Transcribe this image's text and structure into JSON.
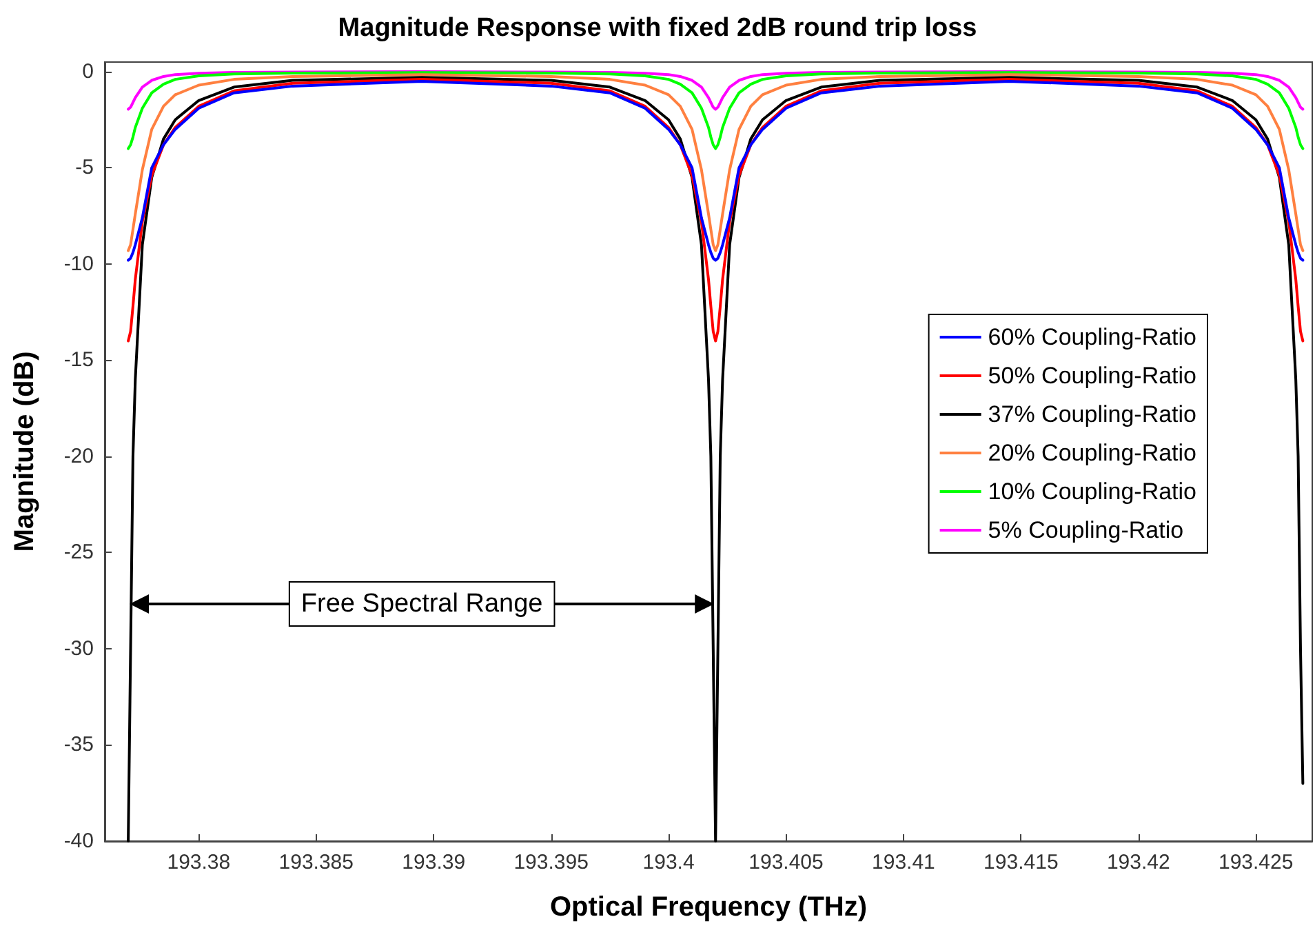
{
  "chart_data": {
    "type": "line",
    "title": "Magnitude Response with fixed 2dB round trip loss",
    "xlabel": "Optical Frequency (THz)",
    "ylabel": "Magnitude (dB)",
    "x": [
      193.377,
      193.3771,
      193.3772,
      193.3773,
      193.3776,
      193.378,
      193.3785,
      193.379,
      193.38,
      193.3815,
      193.384,
      193.3895,
      193.395,
      193.3975,
      193.399,
      193.4,
      193.4005,
      193.401,
      193.4014,
      193.4017,
      193.4018,
      193.4019,
      193.402,
      193.4021,
      193.4022,
      193.4023,
      193.4026,
      193.403,
      193.4035,
      193.404,
      193.405,
      193.4065,
      193.409,
      193.4145,
      193.42,
      193.4225,
      193.424,
      193.425,
      193.4255,
      193.426,
      193.4264,
      193.4267,
      193.4268,
      193.4269,
      193.427
    ],
    "series": [
      {
        "name": "60% Coupling-Ratio",
        "color": "#0000ff",
        "values": [
          -9.8,
          -9.7,
          -9.4,
          -9.0,
          -7.6,
          -5.0,
          -3.8,
          -3.0,
          -1.9,
          -1.1,
          -0.75,
          -0.5,
          -0.75,
          -1.1,
          -1.9,
          -3.0,
          -3.8,
          -5.0,
          -7.6,
          -9.0,
          -9.4,
          -9.7,
          -9.8,
          -9.7,
          -9.4,
          -9.0,
          -7.6,
          -5.0,
          -3.8,
          -3.0,
          -1.9,
          -1.1,
          -0.75,
          -0.5,
          -0.75,
          -1.1,
          -1.9,
          -3.0,
          -3.8,
          -5.0,
          -7.6,
          -9.0,
          -9.4,
          -9.7,
          -9.8
        ]
      },
      {
        "name": "50% Coupling-Ratio",
        "color": "#ff0000",
        "values": [
          -14,
          -13.5,
          -12.2,
          -10.8,
          -7.8,
          -5.4,
          -3.8,
          -2.9,
          -1.8,
          -1.0,
          -0.6,
          -0.4,
          -0.6,
          -1.0,
          -1.8,
          -2.9,
          -3.8,
          -5.4,
          -7.8,
          -10.8,
          -12.2,
          -13.5,
          -14,
          -13.5,
          -12.2,
          -10.8,
          -7.8,
          -5.4,
          -3.8,
          -2.9,
          -1.8,
          -1.0,
          -0.6,
          -0.4,
          -0.6,
          -1.0,
          -1.8,
          -2.9,
          -3.8,
          -5.4,
          -7.8,
          -10.8,
          -12.2,
          -13.5,
          -14
        ]
      },
      {
        "name": "37% Coupling-Ratio",
        "color": "#000000",
        "values": [
          -40,
          -30,
          -20,
          -16,
          -9,
          -5.5,
          -3.5,
          -2.5,
          -1.5,
          -0.8,
          -0.45,
          -0.3,
          -0.45,
          -0.8,
          -1.5,
          -2.5,
          -3.5,
          -5.5,
          -9,
          -16,
          -20,
          -30,
          -40,
          -30,
          -20,
          -16,
          -9,
          -5.5,
          -3.5,
          -2.5,
          -1.5,
          -0.8,
          -0.45,
          -0.3,
          -0.45,
          -0.8,
          -1.5,
          -2.5,
          -3.5,
          -5.5,
          -9,
          -16,
          -20,
          -30,
          -37
        ]
      },
      {
        "name": "20% Coupling-Ratio",
        "color": "#ff8040",
        "values": [
          -9.3,
          -9.0,
          -8.2,
          -7.4,
          -5.1,
          -3.0,
          -1.8,
          -1.2,
          -0.7,
          -0.4,
          -0.25,
          -0.15,
          -0.25,
          -0.4,
          -0.7,
          -1.2,
          -1.8,
          -3.0,
          -5.1,
          -7.4,
          -8.2,
          -9.0,
          -9.3,
          -9.0,
          -8.2,
          -7.4,
          -5.1,
          -3.0,
          -1.8,
          -1.2,
          -0.7,
          -0.4,
          -0.25,
          -0.15,
          -0.25,
          -0.4,
          -0.7,
          -1.2,
          -1.8,
          -3.0,
          -5.1,
          -7.4,
          -8.2,
          -9.0,
          -9.3
        ]
      },
      {
        "name": "10% Coupling-Ratio",
        "color": "#00ff00",
        "values": [
          -4.0,
          -3.8,
          -3.4,
          -2.9,
          -1.9,
          -1.1,
          -0.65,
          -0.4,
          -0.22,
          -0.12,
          -0.07,
          -0.05,
          -0.07,
          -0.12,
          -0.22,
          -0.4,
          -0.65,
          -1.1,
          -1.9,
          -2.9,
          -3.4,
          -3.8,
          -4.0,
          -3.8,
          -3.4,
          -2.9,
          -1.9,
          -1.1,
          -0.65,
          -0.4,
          -0.22,
          -0.12,
          -0.07,
          -0.05,
          -0.07,
          -0.12,
          -0.22,
          -0.4,
          -0.65,
          -1.1,
          -1.9,
          -2.9,
          -3.4,
          -3.8,
          -4.0
        ]
      },
      {
        "name": "5% Coupling-Ratio",
        "color": "#ff00ff",
        "values": [
          -1.95,
          -1.85,
          -1.6,
          -1.35,
          -0.8,
          -0.45,
          -0.25,
          -0.15,
          -0.08,
          -0.04,
          -0.02,
          0,
          -0.02,
          -0.04,
          -0.08,
          -0.15,
          -0.25,
          -0.45,
          -0.8,
          -1.35,
          -1.6,
          -1.85,
          -1.95,
          -1.85,
          -1.6,
          -1.35,
          -0.8,
          -0.45,
          -0.25,
          -0.15,
          -0.08,
          -0.04,
          -0.02,
          0,
          -0.02,
          -0.04,
          -0.08,
          -0.15,
          -0.25,
          -0.45,
          -0.8,
          -1.35,
          -1.6,
          -1.85,
          -1.95
        ]
      }
    ],
    "annotations": [
      "Free Spectral Range"
    ],
    "xlim": [
      193.376,
      193.4274
    ],
    "xticks": [
      193.38,
      193.385,
      193.39,
      193.395,
      193.4,
      193.405,
      193.41,
      193.415,
      193.42,
      193.425
    ],
    "ylim": [
      -40,
      0.5
    ],
    "yticks": [
      -40,
      -35,
      -30,
      -25,
      -20,
      -15,
      -10,
      -5,
      0
    ],
    "grid": false,
    "legend": "right",
    "marker": "none",
    "line_style": "solid"
  }
}
